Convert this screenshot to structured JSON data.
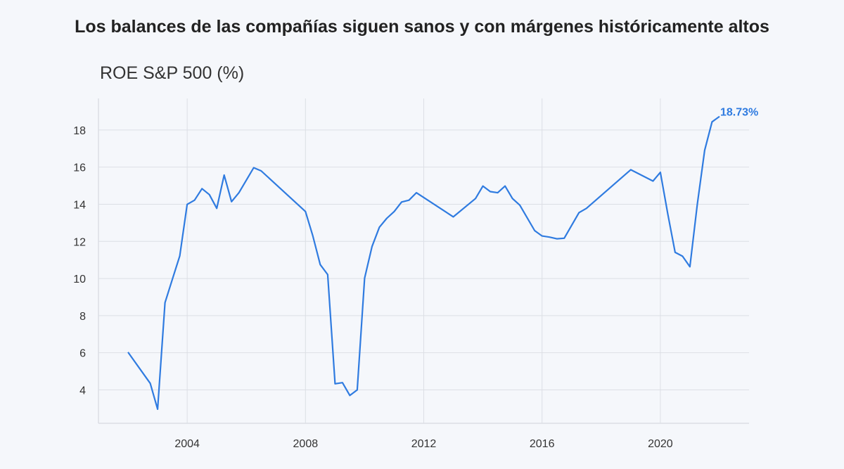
{
  "chart_data": {
    "type": "line",
    "title": "Los balances de las compañías siguen sanos y con márgenes históricamente altos",
    "subtitle": "ROE S&P 500 (%)",
    "xlabel": "",
    "ylabel": "",
    "xlim": [
      2001.0,
      2023.0
    ],
    "ylim": [
      2.2,
      19.7
    ],
    "xticks": [
      2004,
      2008,
      2012,
      2016,
      2020
    ],
    "yticks": [
      4,
      6,
      8,
      10,
      12,
      14,
      16,
      18
    ],
    "grid": true,
    "color": "#2f7be0",
    "end_label": "18.73%",
    "series": [
      {
        "x": [
          2002.0,
          2002.75,
          2003.0,
          2003.25,
          2003.5,
          2003.75,
          2004.0,
          2004.25,
          2004.5,
          2004.75,
          2005.0,
          2005.25,
          2005.5,
          2005.75,
          2006.25,
          2006.5,
          2008.0,
          2008.25,
          2008.5,
          2008.75,
          2009.0,
          2009.25,
          2009.5,
          2009.75,
          2010.0,
          2010.25,
          2010.5,
          2010.75,
          2011.0,
          2011.25,
          2011.5,
          2011.75,
          2013.0,
          2013.75,
          2014.0,
          2014.25,
          2014.5,
          2014.75,
          2015.0,
          2015.25,
          2015.75,
          2016.0,
          2016.25,
          2016.5,
          2016.75,
          2017.25,
          2017.5,
          2019.0,
          2019.75,
          2020.0,
          2020.25,
          2020.5,
          2020.75,
          2021.0,
          2021.25,
          2021.5,
          2021.75,
          2022.0
        ],
        "y": [
          6.03,
          4.35,
          2.96,
          8.7,
          9.96,
          11.22,
          13.99,
          14.22,
          14.84,
          14.52,
          13.78,
          15.57,
          14.14,
          14.62,
          15.97,
          15.8,
          13.61,
          12.29,
          10.75,
          10.21,
          4.33,
          4.39,
          3.7,
          4.0,
          10.02,
          11.72,
          12.76,
          13.24,
          13.61,
          14.12,
          14.22,
          14.62,
          13.32,
          14.31,
          14.98,
          14.68,
          14.62,
          14.98,
          14.31,
          13.95,
          12.58,
          12.29,
          12.23,
          12.14,
          12.17,
          13.55,
          13.78,
          15.86,
          15.25,
          15.72,
          13.49,
          11.41,
          11.2,
          10.63,
          13.99,
          16.91,
          18.44,
          18.73
        ]
      }
    ]
  }
}
